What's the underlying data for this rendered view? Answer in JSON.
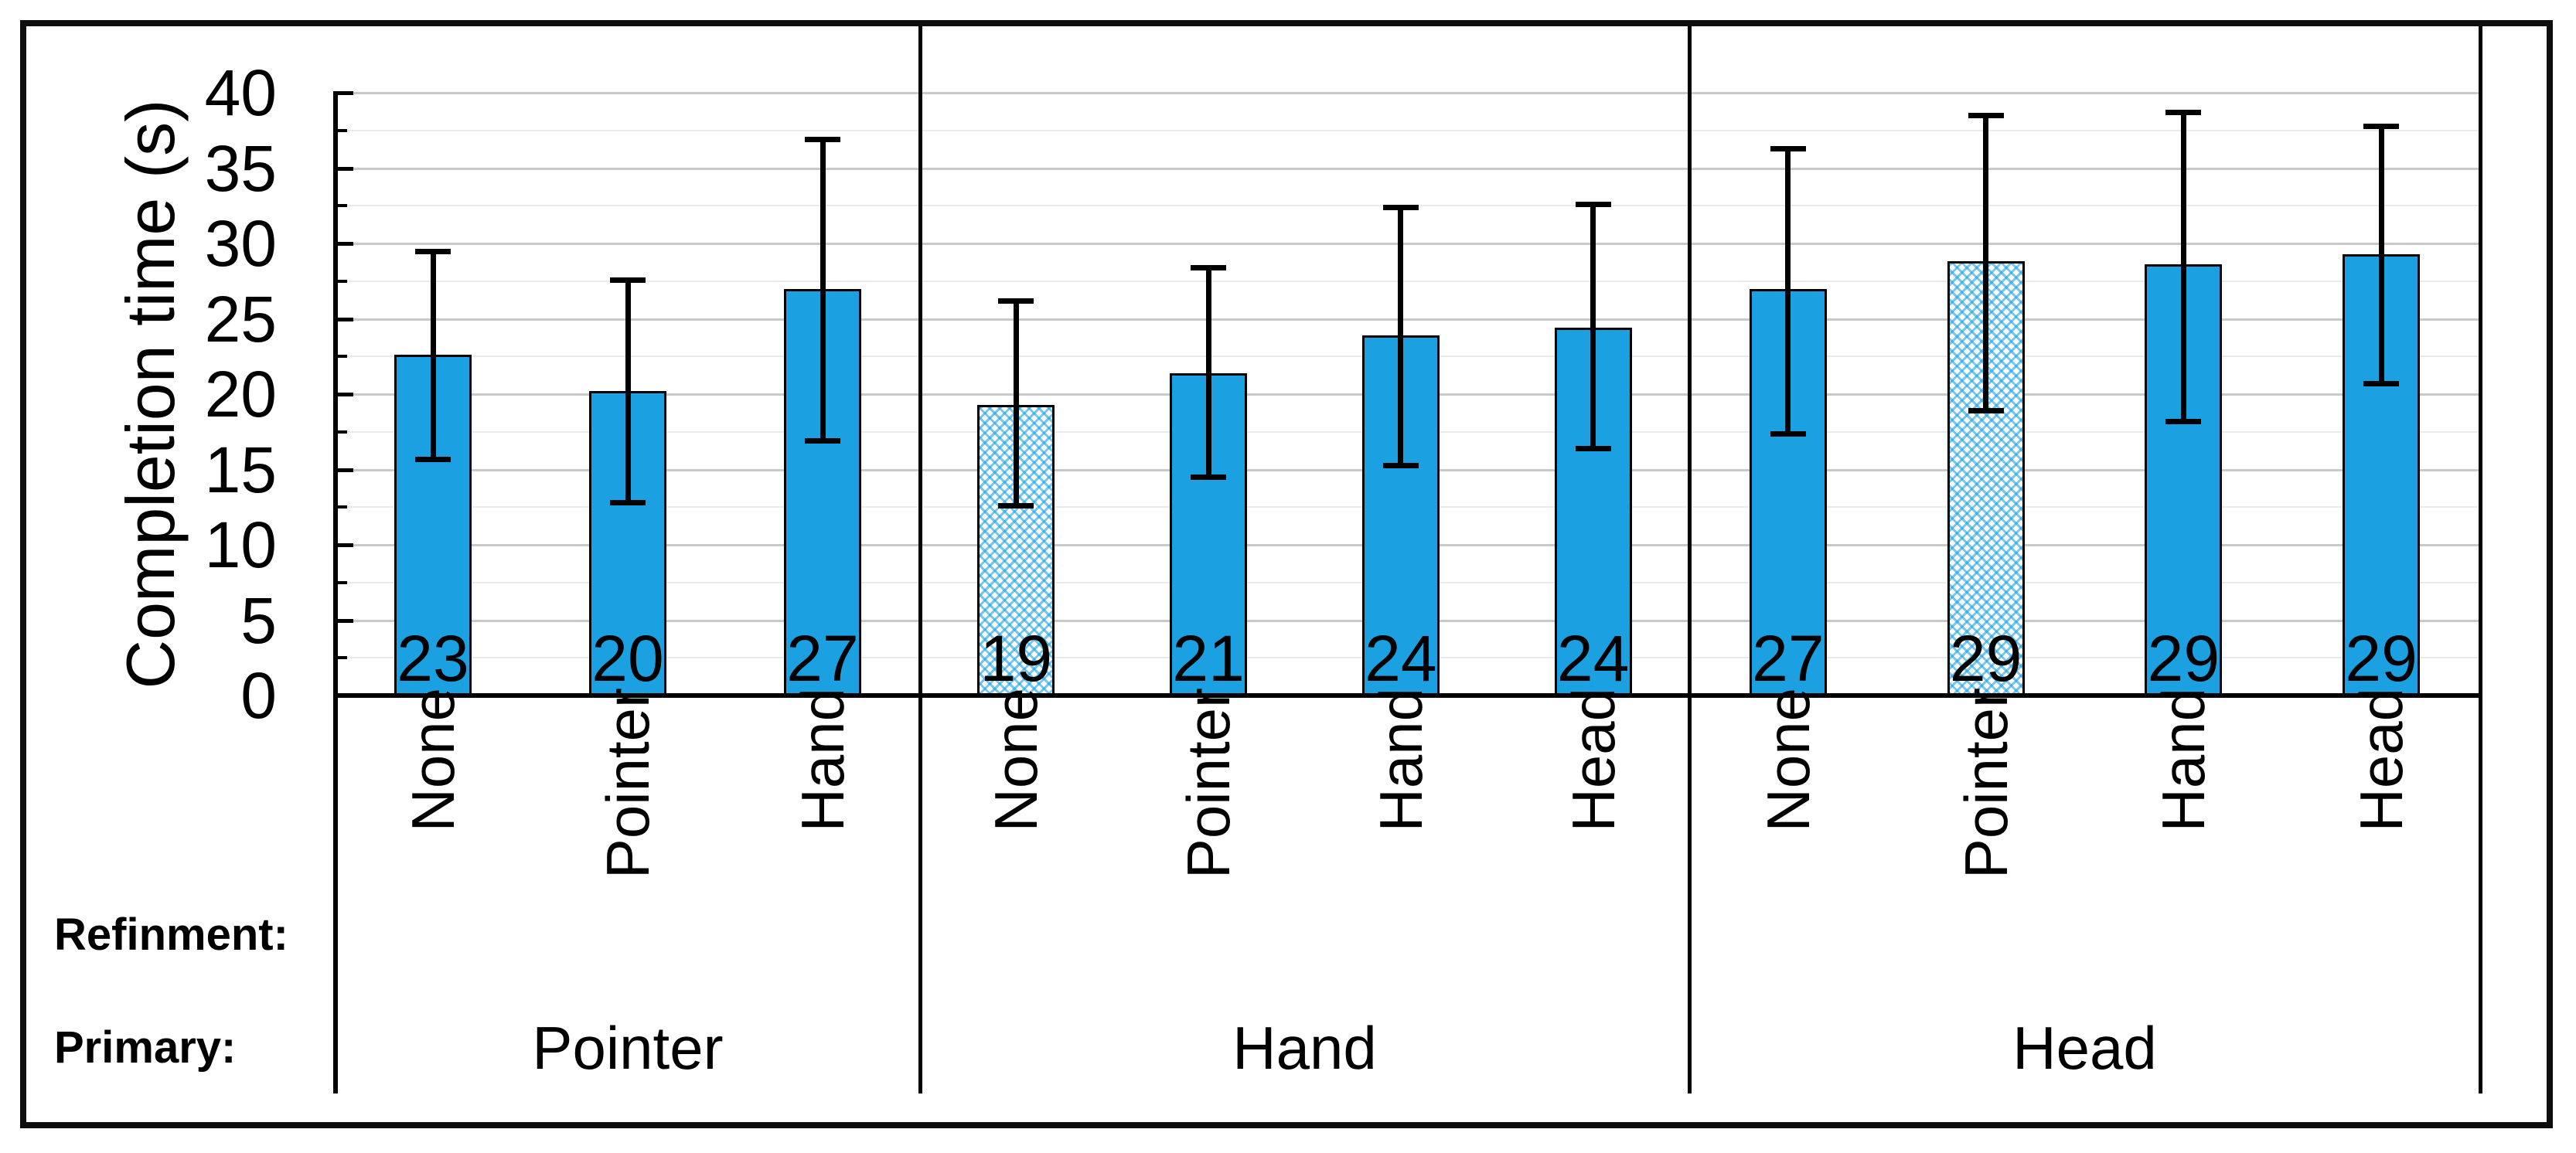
{
  "chart_data": {
    "type": "bar",
    "title": "",
    "ylabel": "Completion time (s)",
    "xlabel": "",
    "ylim": [
      0,
      40
    ],
    "y_major_step": 5,
    "y_minor_step": 2.5,
    "y_tick_labels": [
      "0",
      "5",
      "10",
      "15",
      "20",
      "25",
      "30",
      "35",
      "40"
    ],
    "grid": true,
    "legend_position": "none",
    "row_headers": {
      "refinement": "Refinment:",
      "primary": "Primary:"
    },
    "groups": [
      {
        "primary": "Pointer",
        "bars": [
          {
            "refinement": "None",
            "label": "23",
            "mean": 22.6,
            "err_low": 15.7,
            "err_high": 29.5,
            "patterned": false
          },
          {
            "refinement": "Pointer",
            "label": "20",
            "mean": 20.2,
            "err_low": 12.8,
            "err_high": 27.6,
            "patterned": false
          },
          {
            "refinement": "Hand",
            "label": "27",
            "mean": 27.0,
            "err_low": 16.9,
            "err_high": 36.9,
            "patterned": false
          }
        ]
      },
      {
        "primary": "Hand",
        "bars": [
          {
            "refinement": "None",
            "label": "19",
            "mean": 19.3,
            "err_low": 12.6,
            "err_high": 26.2,
            "patterned": true
          },
          {
            "refinement": "Pointer",
            "label": "21",
            "mean": 21.4,
            "err_low": 14.5,
            "err_high": 28.4,
            "patterned": false
          },
          {
            "refinement": "Hand",
            "label": "24",
            "mean": 23.9,
            "err_low": 15.3,
            "err_high": 32.4,
            "patterned": false
          },
          {
            "refinement": "Head",
            "label": "24",
            "mean": 24.4,
            "err_low": 16.4,
            "err_high": 32.6,
            "patterned": false
          }
        ]
      },
      {
        "primary": "Head",
        "bars": [
          {
            "refinement": "None",
            "label": "27",
            "mean": 27.0,
            "err_low": 17.4,
            "err_high": 36.3,
            "patterned": false
          },
          {
            "refinement": "Pointer",
            "label": "29",
            "mean": 28.8,
            "err_low": 18.9,
            "err_high": 38.5,
            "patterned": true
          },
          {
            "refinement": "Hand",
            "label": "29",
            "mean": 28.6,
            "err_low": 18.2,
            "err_high": 38.7,
            "patterned": false
          },
          {
            "refinement": "Head",
            "label": "29",
            "mean": 29.3,
            "err_low": 20.7,
            "err_high": 37.8,
            "patterned": false
          }
        ]
      }
    ],
    "colors": {
      "bar_fill": "#1BA1E2",
      "bar_border": "#000000",
      "pattern_fill": "#FFFFFF",
      "pattern_lines": "#1BA1E2",
      "error_bar": "#000000",
      "grid_major": "#c9c9c9",
      "grid_minor": "#eaeaea",
      "axis": "#000000",
      "background": "#FFFFFF"
    }
  }
}
